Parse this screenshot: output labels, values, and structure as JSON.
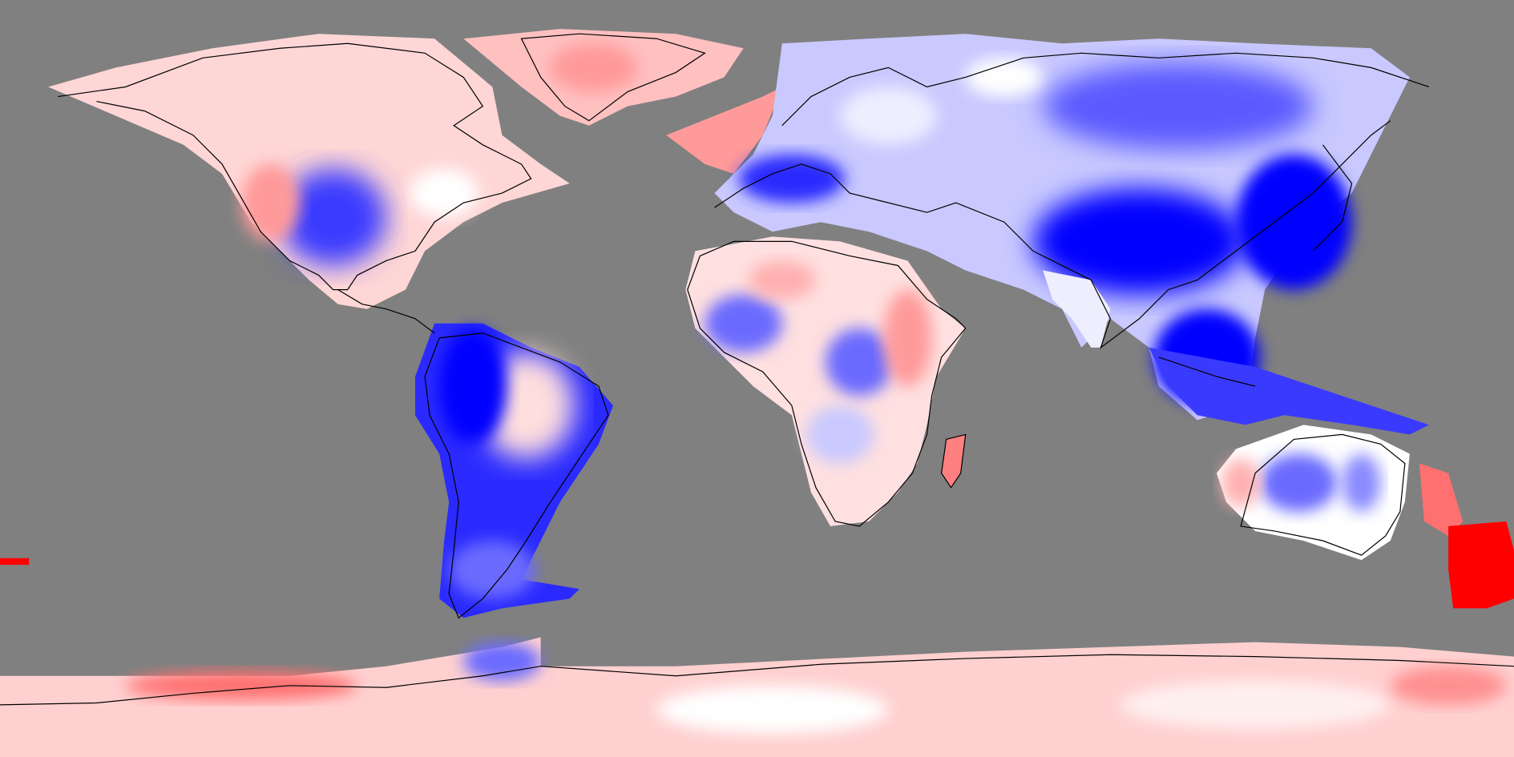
{
  "map": {
    "projection": "equirectangular",
    "colors": {
      "ocean": "#808080",
      "strong_negative": "#0000ff",
      "medium_negative": "#6b6bff",
      "weak_negative": "#c9c9ff",
      "neutral": "#ffffff",
      "weak_positive": "#ffc8c8",
      "medium_positive": "#ff8a8a",
      "strong_positive": "#ff0000",
      "coastline": "#000000"
    }
  }
}
